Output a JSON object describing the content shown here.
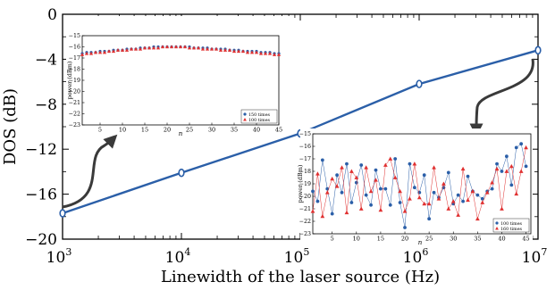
{
  "colors": {
    "main_line": "#2b5fa8",
    "blue_series": "#2b5fa8",
    "red_series": "#e03030",
    "axis": "#000000",
    "arrow": "#3a3a3a"
  },
  "chart_data": [
    {
      "id": "main",
      "type": "line",
      "title": "",
      "xlabel": "Linewidth of the laser source (Hz)",
      "ylabel": "DOS (dB)",
      "xscale": "log",
      "xlim": [
        1000,
        10000000
      ],
      "ylim": [
        -20,
        0
      ],
      "xticks": [
        1000,
        10000,
        100000,
        1000000,
        10000000
      ],
      "xtick_labels": [
        {
          "base": "10",
          "exp": "3"
        },
        {
          "base": "10",
          "exp": "4"
        },
        {
          "base": "10",
          "exp": "5"
        },
        {
          "base": "10",
          "exp": "6"
        },
        {
          "base": "10",
          "exp": "7"
        }
      ],
      "yticks": [
        0,
        -4,
        -8,
        -12,
        -16,
        -20
      ],
      "ytick_labels": [
        "0",
        "−4",
        "−8",
        "−12",
        "−16",
        "−20"
      ],
      "grid": false,
      "series": [
        {
          "x": [
            1000,
            10000,
            100000,
            1000000,
            10000000
          ],
          "y": [
            -17.7,
            -14.1,
            -10.6,
            -6.2,
            -3.2
          ],
          "marker": "open-circle"
        }
      ]
    },
    {
      "id": "inset-top",
      "type": "scatter",
      "xlabel": "n",
      "ylabel": "power (dBm)",
      "xlim": [
        1,
        45
      ],
      "ylim": [
        -23,
        -15
      ],
      "xticks": [
        5,
        10,
        15,
        20,
        25,
        30,
        35,
        40,
        45
      ],
      "yticks": [
        -15,
        -16,
        -17,
        -18,
        -19,
        -20,
        -21,
        -22,
        -23
      ],
      "ytick_labels": [
        "−15",
        "−16",
        "−17",
        "−18",
        "−19",
        "−20",
        "−21",
        "−22",
        "−23"
      ],
      "legend": "bottom-right",
      "series": [
        {
          "name": "150 times",
          "marker": "circle",
          "x": [
            1,
            2,
            3,
            4,
            5,
            6,
            7,
            8,
            9,
            10,
            11,
            12,
            13,
            14,
            15,
            16,
            17,
            18,
            19,
            20,
            21,
            22,
            23,
            24,
            25,
            26,
            27,
            28,
            29,
            30,
            31,
            32,
            33,
            34,
            35,
            36,
            37,
            38,
            39,
            40,
            41,
            42,
            43,
            44,
            45
          ],
          "y": [
            -16.6,
            -16.5,
            -16.5,
            -16.5,
            -16.4,
            -16.4,
            -16.4,
            -16.3,
            -16.3,
            -16.3,
            -16.2,
            -16.2,
            -16.2,
            -16.1,
            -16.1,
            -16.1,
            -16.0,
            -16.0,
            -16.0,
            -16.0,
            -16.0,
            -16.0,
            -16.0,
            -16.0,
            -16.0,
            -16.1,
            -16.1,
            -16.1,
            -16.1,
            -16.2,
            -16.2,
            -16.2,
            -16.2,
            -16.3,
            -16.3,
            -16.3,
            -16.4,
            -16.4,
            -16.4,
            -16.4,
            -16.5,
            -16.5,
            -16.5,
            -16.6,
            -16.6
          ]
        },
        {
          "name": "100 times",
          "marker": "triangle",
          "x": [
            1,
            2,
            3,
            4,
            5,
            6,
            7,
            8,
            9,
            10,
            11,
            12,
            13,
            14,
            15,
            16,
            17,
            18,
            19,
            20,
            21,
            22,
            23,
            24,
            25,
            26,
            27,
            28,
            29,
            30,
            31,
            32,
            33,
            34,
            35,
            36,
            37,
            38,
            39,
            40,
            41,
            42,
            43,
            44,
            45
          ],
          "y": [
            -16.7,
            -16.6,
            -16.6,
            -16.5,
            -16.5,
            -16.5,
            -16.4,
            -16.4,
            -16.3,
            -16.3,
            -16.3,
            -16.2,
            -16.2,
            -16.2,
            -16.1,
            -16.1,
            -16.1,
            -16.1,
            -16.0,
            -16.0,
            -16.0,
            -16.0,
            -16.0,
            -16.0,
            -16.1,
            -16.1,
            -16.1,
            -16.2,
            -16.2,
            -16.2,
            -16.2,
            -16.3,
            -16.3,
            -16.3,
            -16.4,
            -16.4,
            -16.4,
            -16.5,
            -16.5,
            -16.5,
            -16.6,
            -16.6,
            -16.6,
            -16.7,
            -16.7
          ]
        }
      ]
    },
    {
      "id": "inset-bottom",
      "type": "line",
      "xlabel": "n",
      "ylabel": "power (dBm)",
      "xlim": [
        1,
        46
      ],
      "ylim": [
        -23,
        -15
      ],
      "xticks": [
        5,
        10,
        15,
        20,
        25,
        30,
        35,
        40,
        45
      ],
      "yticks": [
        -15,
        -16,
        -17,
        -18,
        -19,
        -20,
        -21,
        -22,
        -23
      ],
      "ytick_labels": [
        "−15",
        "−16",
        "−17",
        "−18",
        "−19",
        "−20",
        "−21",
        "−22",
        "−23"
      ],
      "legend": "bottom-right",
      "series": [
        {
          "name": "100 times",
          "marker": "circle",
          "x": [
            1,
            2,
            3,
            4,
            5,
            6,
            7,
            8,
            9,
            10,
            11,
            12,
            13,
            14,
            15,
            16,
            17,
            18,
            19,
            20,
            21,
            22,
            23,
            24,
            25,
            26,
            27,
            28,
            29,
            30,
            31,
            32,
            33,
            34,
            35,
            36,
            37,
            38,
            39,
            40,
            41,
            42,
            43,
            44,
            45
          ],
          "y": [
            -19.6,
            -20.4,
            -17.1,
            -19.4,
            -21.4,
            -18.3,
            -19.7,
            -17.4,
            -20.5,
            -18.9,
            -17.5,
            -19.9,
            -20.7,
            -17.9,
            -19.4,
            -19.4,
            -20.7,
            -17.0,
            -20.5,
            -22.5,
            -17.4,
            -19.3,
            -19.7,
            -18.3,
            -21.8,
            -19.7,
            -20.1,
            -19.3,
            -18.1,
            -20.6,
            -19.9,
            -20.4,
            -18.4,
            -19.6,
            -19.9,
            -20.2,
            -19.6,
            -19.4,
            -17.4,
            -18.0,
            -16.8,
            -19.1,
            -16.1,
            -15.8,
            -17.6
          ]
        },
        {
          "name": "160 times",
          "marker": "triangle",
          "x": [
            1,
            2,
            3,
            4,
            5,
            6,
            7,
            8,
            9,
            10,
            11,
            12,
            13,
            14,
            15,
            16,
            17,
            18,
            19,
            20,
            21,
            22,
            23,
            24,
            25,
            26,
            27,
            28,
            29,
            30,
            31,
            32,
            33,
            34,
            35,
            36,
            37,
            38,
            39,
            40,
            41,
            42,
            43,
            44,
            45
          ],
          "y": [
            -21.2,
            -18.2,
            -21.6,
            -19.7,
            -18.6,
            -19.2,
            -17.7,
            -21.3,
            -18.0,
            -18.5,
            -21.0,
            -17.7,
            -19.6,
            -18.7,
            -21.1,
            -17.5,
            -17.0,
            -18.5,
            -19.6,
            -21.2,
            -20.2,
            -17.4,
            -20.1,
            -20.6,
            -20.6,
            -17.7,
            -20.2,
            -19.0,
            -21.0,
            -20.4,
            -21.5,
            -17.8,
            -20.3,
            -19.6,
            -21.8,
            -20.5,
            -19.7,
            -18.9,
            -17.8,
            -21.0,
            -18.0,
            -17.6,
            -19.8,
            -18.0,
            -16.1
          ]
        }
      ]
    }
  ]
}
